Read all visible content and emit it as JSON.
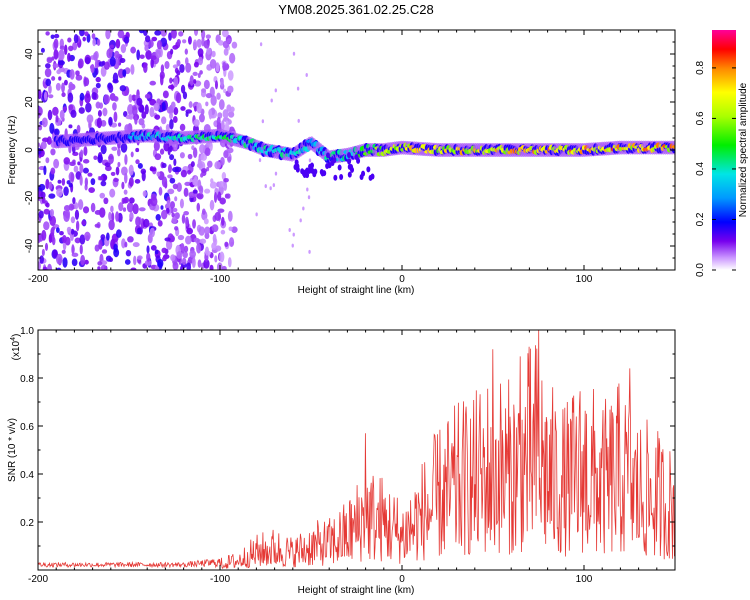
{
  "chart_data": [
    {
      "type": "heatmap",
      "title": "YM08.2025.361.02.25.C28",
      "xlabel": "Height of straight line (km)",
      "ylabel": "Frequency (Hz)",
      "xlim": [
        -200,
        150
      ],
      "ylim": [
        -50,
        50
      ],
      "x_ticks": [
        -200,
        -100,
        0,
        100
      ],
      "y_ticks": [
        -40,
        -20,
        0,
        20,
        40
      ],
      "colorbar": {
        "label": "Normalized spectral amplitude",
        "range": [
          0.0,
          0.95
        ],
        "ticks": [
          "0.0",
          "0.2",
          "0.4",
          "0.6",
          "0.8"
        ],
        "tick_values": [
          0.0,
          0.2,
          0.4,
          0.6,
          0.8
        ]
      },
      "noise_region_end_km": -92,
      "ridge": [
        {
          "x": -180,
          "y": 4,
          "amp": 0.35
        },
        {
          "x": -140,
          "y": 6,
          "amp": 0.4
        },
        {
          "x": -120,
          "y": 5,
          "amp": 0.45
        },
        {
          "x": -100,
          "y": 6,
          "amp": 0.5
        },
        {
          "x": -85,
          "y": 3,
          "amp": 0.45
        },
        {
          "x": -75,
          "y": 0,
          "amp": 0.45
        },
        {
          "x": -60,
          "y": -2,
          "amp": 0.45
        },
        {
          "x": -50,
          "y": 3,
          "amp": 0.4
        },
        {
          "x": -40,
          "y": -3,
          "amp": 0.45
        },
        {
          "x": -30,
          "y": -2,
          "amp": 0.5
        },
        {
          "x": -20,
          "y": 0,
          "amp": 0.55
        },
        {
          "x": -10,
          "y": 0,
          "amp": 0.7
        },
        {
          "x": 0,
          "y": 1,
          "amp": 0.8
        },
        {
          "x": 20,
          "y": 0,
          "amp": 0.75
        },
        {
          "x": 40,
          "y": 0,
          "amp": 0.8
        },
        {
          "x": 60,
          "y": 0,
          "amp": 0.85
        },
        {
          "x": 80,
          "y": 0,
          "amp": 0.85
        },
        {
          "x": 100,
          "y": 0,
          "amp": 0.9
        },
        {
          "x": 120,
          "y": 1,
          "amp": 0.85
        },
        {
          "x": 150,
          "y": 1,
          "amp": 0.85
        }
      ]
    },
    {
      "type": "line",
      "xlabel": "Height of straight line (km)",
      "ylabel": "SNR (10 * v/v)",
      "y_multiplier": "(x10^4)",
      "y_multiplier_base": "(x10",
      "y_multiplier_exp": "4",
      "xlim": [
        -200,
        150
      ],
      "ylim": [
        0,
        1.0
      ],
      "x_ticks": [
        -200,
        -100,
        0,
        100
      ],
      "y_ticks": [
        "0.2",
        "0.4",
        "0.6",
        "0.8",
        "1.0"
      ],
      "y_tick_values": [
        0.2,
        0.4,
        0.6,
        0.8,
        1.0
      ],
      "series": [
        {
          "name": "SNR",
          "color": "#e53935",
          "envelope": [
            {
              "x": -200,
              "y": 0.03
            },
            {
              "x": -120,
              "y": 0.03
            },
            {
              "x": -100,
              "y": 0.05
            },
            {
              "x": -90,
              "y": 0.08
            },
            {
              "x": -80,
              "y": 0.15
            },
            {
              "x": -70,
              "y": 0.18
            },
            {
              "x": -60,
              "y": 0.14
            },
            {
              "x": -50,
              "y": 0.2
            },
            {
              "x": -40,
              "y": 0.22
            },
            {
              "x": -30,
              "y": 0.3
            },
            {
              "x": -20,
              "y": 0.45
            },
            {
              "x": -10,
              "y": 0.4
            },
            {
              "x": 0,
              "y": 0.3
            },
            {
              "x": 10,
              "y": 0.45
            },
            {
              "x": 20,
              "y": 0.6
            },
            {
              "x": 30,
              "y": 0.7
            },
            {
              "x": 40,
              "y": 0.75
            },
            {
              "x": 50,
              "y": 0.85
            },
            {
              "x": 60,
              "y": 0.8
            },
            {
              "x": 70,
              "y": 0.95
            },
            {
              "x": 75,
              "y": 1.0
            },
            {
              "x": 80,
              "y": 0.8
            },
            {
              "x": 90,
              "y": 0.7
            },
            {
              "x": 100,
              "y": 0.85
            },
            {
              "x": 110,
              "y": 0.7
            },
            {
              "x": 120,
              "y": 0.8
            },
            {
              "x": 130,
              "y": 0.65
            },
            {
              "x": 140,
              "y": 0.6
            },
            {
              "x": 150,
              "y": 0.5
            }
          ],
          "peaks": [
            {
              "x": -20,
              "y": 0.57
            },
            {
              "x": 50,
              "y": 0.92
            },
            {
              "x": 65,
              "y": 0.89
            },
            {
              "x": 75,
              "y": 1.0
            },
            {
              "x": 125,
              "y": 0.84
            }
          ]
        }
      ]
    }
  ]
}
